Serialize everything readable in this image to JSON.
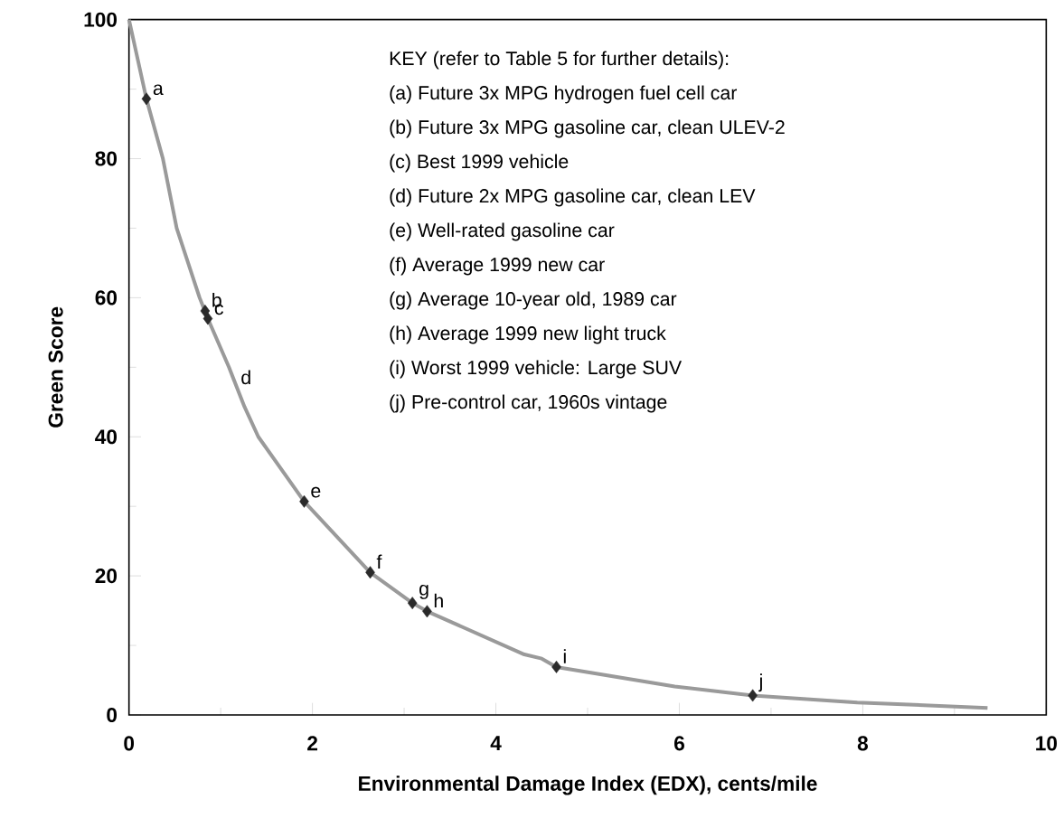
{
  "chart_data": {
    "type": "scatter",
    "xlabel": "Environmental Damage Index (EDX),  cents/mile",
    "ylabel": "Green Score",
    "xlim": [
      0,
      10
    ],
    "ylim": [
      0,
      100
    ],
    "xticks": [
      0,
      2,
      4,
      6,
      8,
      10
    ],
    "yticks": [
      0,
      20,
      40,
      60,
      80,
      100
    ],
    "series": [
      {
        "type": "line",
        "color": "#9a9a9a",
        "marker": "none",
        "line_style": "solid",
        "x": [
          0,
          0.19,
          0.37,
          0.52,
          0.77,
          0.86,
          1.09,
          1.26,
          1.41,
          1.91,
          2.63,
          3.09,
          3.25,
          4.31,
          4.5,
          4.66,
          5.95,
          6.8,
          7.94,
          9.36
        ],
        "values": [
          100,
          88.6,
          80,
          70,
          60,
          57.0,
          50,
          44.3,
          40,
          30.7,
          20.5,
          16.1,
          14.9,
          8.7,
          8.1,
          6.9,
          4.1,
          2.8,
          1.8,
          1.0
        ]
      },
      {
        "color": "#2a2a2a",
        "marker": "diamond",
        "x": [
          0.19,
          0.83,
          0.86,
          1.91,
          2.63,
          3.09,
          3.25,
          4.66,
          6.8
        ],
        "values": [
          88.6,
          58.1,
          57.0,
          30.7,
          20.5,
          16.1,
          14.9,
          6.9,
          2.8
        ]
      }
    ],
    "annotations": [
      {
        "text": "a",
        "x": 0.19,
        "y": 88.6
      },
      {
        "text": "b",
        "x": 0.83,
        "y": 58.1
      },
      {
        "text": "c",
        "x": 0.86,
        "y": 57.0
      },
      {
        "text": "d",
        "x": 1.15,
        "y": 47
      },
      {
        "text": "e",
        "x": 1.91,
        "y": 30.7
      },
      {
        "text": "f",
        "x": 2.63,
        "y": 20.5
      },
      {
        "text": "g",
        "x": 3.09,
        "y": 16.1
      },
      {
        "text": "h",
        "x": 3.25,
        "y": 14.9
      },
      {
        "text": "i",
        "x": 4.66,
        "y": 6.9
      },
      {
        "text": "j",
        "x": 6.8,
        "y": 2.8
      },
      "KEY (refer to Table 5 for further details):",
      "(a) Future 3x MPG hydrogen fuel cell car",
      "(b) Future 3x MPG gasoline car, clean ULEV-2",
      "(c) Best 1999 vehicle",
      "(d) Future 2x MPG gasoline car, clean LEV",
      "(e) Well-rated gasoline car",
      "(f)  Average 1999 new car",
      "(g) Average 10-year old, 1989 car",
      "(h) Average 1999 new light truck",
      "(i)  Worst 1999 vehicle: Large SUV",
      "(j)  Pre-control car, 1960s vintage"
    ]
  }
}
